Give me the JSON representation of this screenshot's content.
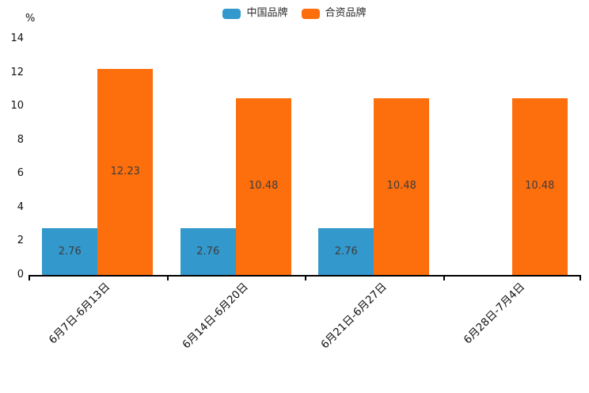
{
  "chart_data": {
    "type": "bar",
    "title": "",
    "categories": [
      "6月7日-6月13日",
      "6月14日-6月20日",
      "6月21日-6月27日",
      "6月28日-7月4日"
    ],
    "series": [
      {
        "name": "中国品牌",
        "color": "#3398CB",
        "values": [
          2.76,
          2.76,
          2.76,
          null
        ]
      },
      {
        "name": "合资品牌",
        "color": "#FD6E0D",
        "values": [
          12.23,
          10.48,
          10.48,
          10.48
        ]
      }
    ],
    "bar_labels": [
      "2.76",
      "12.23",
      "2.76",
      "10.48",
      "2.76",
      "10.48",
      "10.48"
    ],
    "xlabel": "",
    "ylabel": "%",
    "ylim": [
      0,
      14
    ],
    "yticks": [
      "0",
      "2",
      "4",
      "6",
      "8",
      "10",
      "12",
      "14"
    ],
    "grid": false,
    "legend_position": "top-center",
    "bar_label_color": "#3D3D3D",
    "axis_color": "#000000",
    "background_color": "#FFFFFF"
  }
}
